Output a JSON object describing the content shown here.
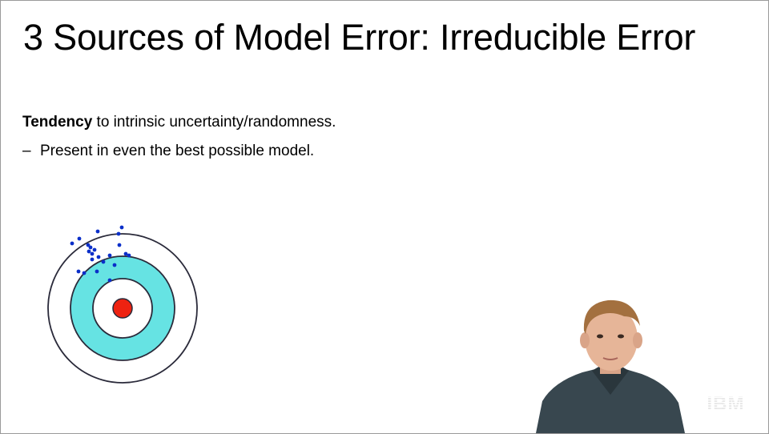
{
  "slide": {
    "title": "3 Sources of Model Error: Irreducible Error",
    "bullet_main": {
      "bold": "Tendency",
      "rest": " to intrinsic uncertainty/randomness."
    },
    "bullet_sub": {
      "dash": "–",
      "text": "Present in even the best possible model."
    }
  },
  "target": {
    "colors": {
      "outer_ring": "#ffffff",
      "middle_ring": "#66e3e3",
      "inner_ring": "#ffffff",
      "bullseye": "#ee2211",
      "stroke": "#2a2a3a",
      "dots": "#0b2fc9"
    }
  },
  "logo": {
    "text": "IBM",
    "color": "#1a1a1a"
  }
}
